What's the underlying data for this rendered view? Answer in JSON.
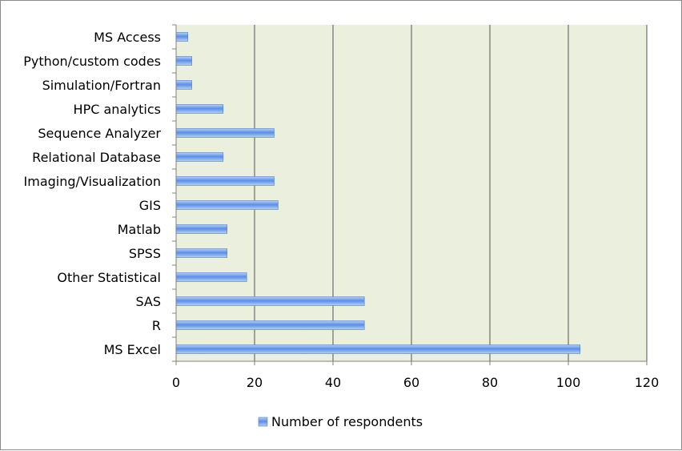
{
  "chart_data": {
    "type": "bar",
    "orientation": "horizontal",
    "title": "",
    "xlabel": "",
    "ylabel": "",
    "categories": [
      "MS Access",
      "Python/custom codes",
      "Simulation/Fortran",
      "HPC analytics",
      "Sequence Analyzer",
      "Relational Database",
      "Imaging/Visualization",
      "GIS",
      "Matlab",
      "SPSS",
      "Other Statistical",
      "SAS",
      "R",
      "MS Excel"
    ],
    "series": [
      {
        "name": "Number of respondents",
        "values": [
          3,
          4,
          4,
          12,
          25,
          12,
          25,
          26,
          13,
          13,
          18,
          48,
          48,
          103
        ]
      }
    ],
    "xlim": [
      0,
      120
    ],
    "xticks": [
      0,
      20,
      40,
      60,
      80,
      100,
      120
    ],
    "grid": "vertical",
    "legend_position": "bottom",
    "colors": {
      "plot_background": "#ebf0de",
      "bar_fill_light": "#b9d1f5",
      "bar_fill_dark": "#5b8ee6",
      "bar_stroke": "#4f81bd",
      "gridline": "#555555"
    }
  }
}
